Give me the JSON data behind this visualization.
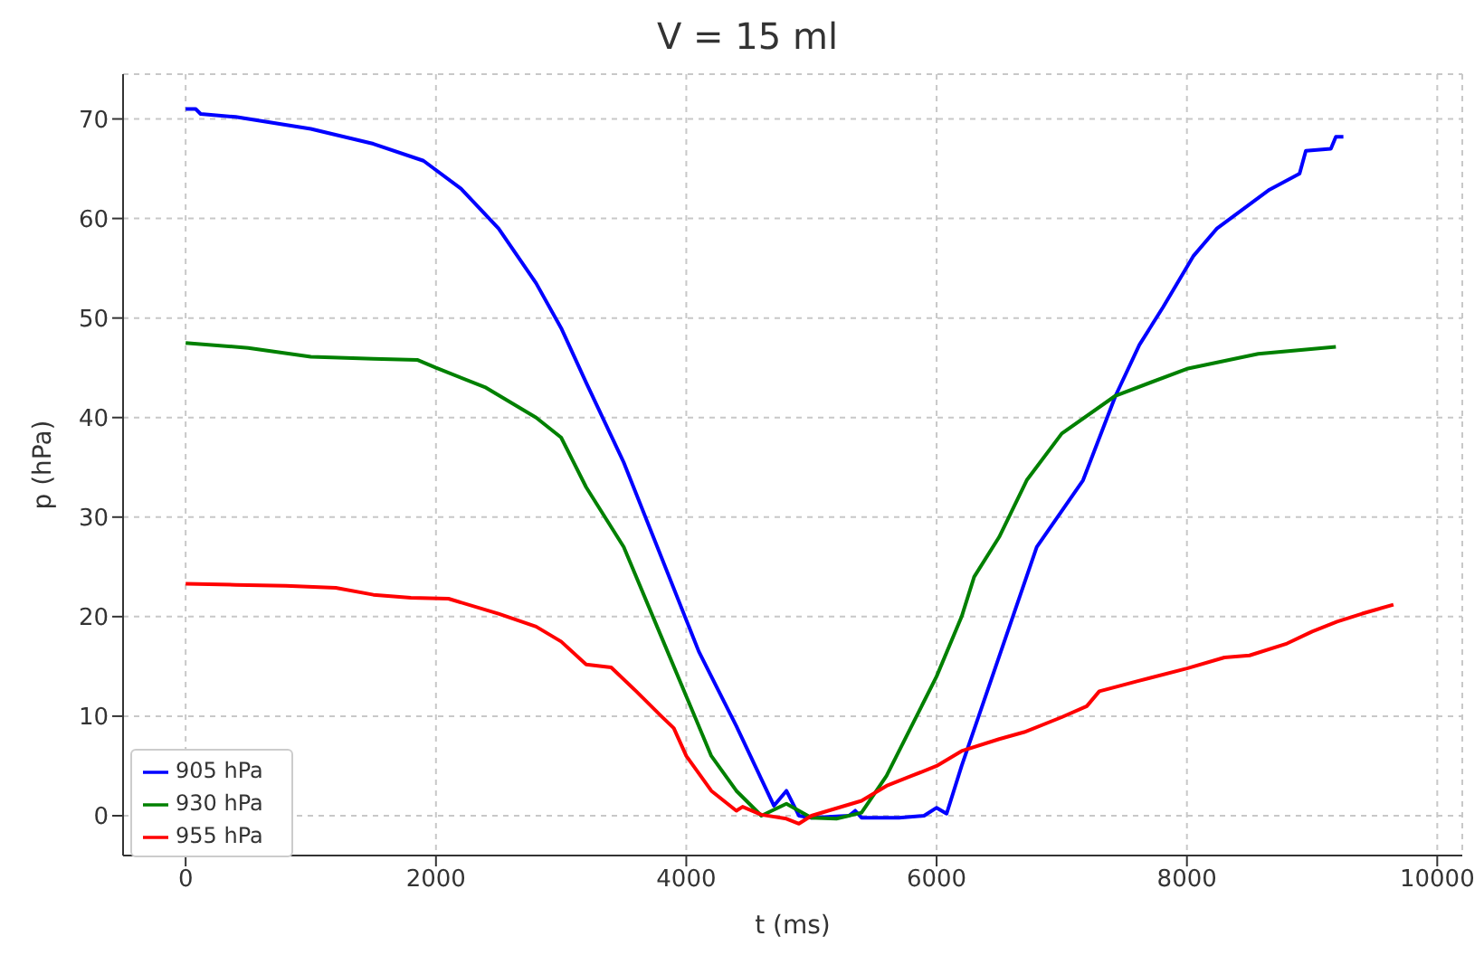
{
  "chart_data": {
    "type": "line",
    "title": "V = 15 ml",
    "xlabel": "t (ms)",
    "ylabel": "p (hPa)",
    "xlim": [
      -500,
      10200
    ],
    "ylim": [
      -4,
      74.5
    ],
    "xticks": [
      0,
      2000,
      4000,
      6000,
      8000,
      10000
    ],
    "yticks": [
      0,
      10,
      20,
      30,
      40,
      50,
      60,
      70
    ],
    "grid": true,
    "legend": "bottom left",
    "marker": "none",
    "line_style": "solid",
    "series": [
      {
        "name": "905 hPa",
        "color": "#0000ff",
        "x": [
          0,
          80,
          120,
          400,
          1000,
          1500,
          1900,
          2200,
          2500,
          2800,
          3000,
          3200,
          3500,
          3800,
          4100,
          4400,
          4700,
          4800,
          4900,
          5000,
          5300,
          5350,
          5400,
          5700,
          5900,
          6000,
          6080,
          6200,
          6500,
          6800,
          7170,
          7430,
          7620,
          7810,
          8050,
          8240,
          8660,
          8900,
          8950,
          9150,
          9190,
          9250
        ],
        "values": [
          71,
          71,
          70.5,
          70.2,
          69,
          67.5,
          65.8,
          63,
          59,
          53.5,
          49,
          43.5,
          35.5,
          26,
          16.5,
          9,
          1,
          2.5,
          0,
          -0.2,
          0,
          0.5,
          -0.2,
          -0.2,
          0,
          0.8,
          0.2,
          5,
          16,
          27,
          33.7,
          42.2,
          47.3,
          51.1,
          56.2,
          59,
          62.9,
          64.5,
          66.8,
          67,
          68.2,
          68.2
        ]
      },
      {
        "name": "930 hPa",
        "color": "#008000",
        "x": [
          0,
          500,
          1000,
          1500,
          1850,
          2000,
          2400,
          2800,
          3000,
          3200,
          3500,
          3800,
          4000,
          4200,
          4400,
          4600,
          4800,
          5000,
          5200,
          5400,
          5600,
          5800,
          6000,
          6200,
          6300,
          6500,
          6720,
          7000,
          7430,
          8000,
          8570,
          9190
        ],
        "values": [
          47.5,
          47,
          46.1,
          45.9,
          45.8,
          45,
          43,
          40,
          38,
          33,
          27,
          18,
          12,
          6,
          2.5,
          0,
          1.2,
          -0.2,
          -0.3,
          0.3,
          4,
          9,
          14,
          20,
          24,
          28,
          33.7,
          38.4,
          42.2,
          44.9,
          46.4,
          47.1
        ]
      },
      {
        "name": "955 hPa",
        "color": "#ff0000",
        "x": [
          0,
          400,
          800,
          1200,
          1500,
          1800,
          2100,
          2500,
          2800,
          3000,
          3200,
          3400,
          3600,
          3800,
          3900,
          4000,
          4200,
          4400,
          4450,
          4600,
          4800,
          4900,
          5000,
          5400,
          5600,
          5800,
          6000,
          6200,
          6500,
          6700,
          7000,
          7200,
          7300,
          7600,
          8000,
          8300,
          8500,
          8800,
          9000,
          9200,
          9400,
          9650
        ],
        "values": [
          23.3,
          23.2,
          23.1,
          22.9,
          22.2,
          21.9,
          21.8,
          20.3,
          19,
          17.5,
          15.2,
          14.9,
          12.5,
          10,
          8.8,
          6,
          2.5,
          0.5,
          0.9,
          0.1,
          -0.3,
          -0.8,
          0,
          1.5,
          3,
          4,
          5,
          6.5,
          7.7,
          8.4,
          9.9,
          11,
          12.5,
          13.5,
          14.8,
          15.9,
          16.1,
          17.3,
          18.5,
          19.5,
          20.3,
          21.2
        ]
      }
    ]
  }
}
